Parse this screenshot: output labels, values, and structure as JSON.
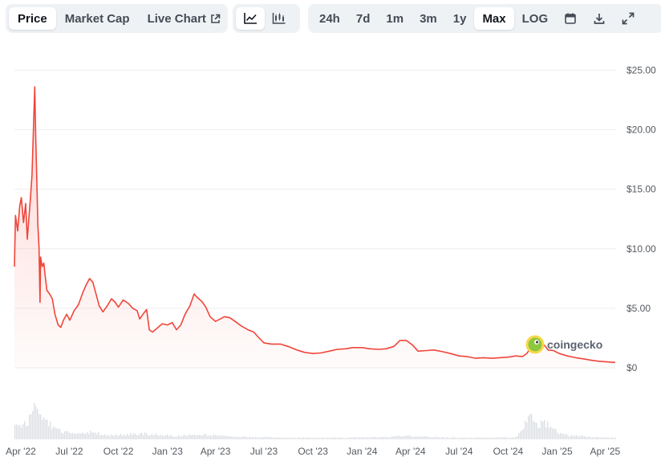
{
  "toolbar": {
    "metric_tabs": [
      {
        "label": "Price",
        "active": true
      },
      {
        "label": "Market Cap",
        "active": false
      },
      {
        "label": "Live Chart",
        "active": false
      }
    ],
    "chart_type_icons": [
      {
        "icon": "line-chart-icon",
        "active": true
      },
      {
        "icon": "candlestick-chart-icon",
        "active": false
      }
    ],
    "ranges": [
      {
        "label": "24h",
        "active": false
      },
      {
        "label": "7d",
        "active": false
      },
      {
        "label": "1m",
        "active": false
      },
      {
        "label": "3m",
        "active": false
      },
      {
        "label": "1y",
        "active": false
      },
      {
        "label": "Max",
        "active": true
      },
      {
        "label": "LOG",
        "active": false
      }
    ],
    "action_icons": [
      "calendar-icon",
      "download-icon",
      "expand-icon"
    ]
  },
  "watermark": {
    "text": "coingecko",
    "logo_icon": "coingecko-logo-icon"
  },
  "colors": {
    "line": "#f0453a",
    "fill": "#fde3e1",
    "grid": "#eeeeee",
    "volume": "#dde0e4"
  },
  "chart_data": {
    "type": "line",
    "currency": "USD",
    "y_ticks": [
      "$25.00",
      "$20.00",
      "$15.00",
      "$10.00",
      "$5.00",
      "$0"
    ],
    "y_tick_values": [
      25,
      20,
      15,
      10,
      5,
      0
    ],
    "ylim": [
      0,
      25.5
    ],
    "x_ticks": [
      "Apr '22",
      "Jul '22",
      "Oct '22",
      "Jan '23",
      "Apr '23",
      "Jul '23",
      "Oct '23",
      "Jan '24",
      "Apr '24",
      "Jul '24",
      "Oct '24",
      "Jan '25",
      "Apr '25"
    ],
    "x_tick_dates": [
      "2022-04-01",
      "2022-07-01",
      "2022-10-01",
      "2023-01-01",
      "2023-04-01",
      "2023-07-01",
      "2023-10-01",
      "2024-01-01",
      "2024-04-01",
      "2024-07-01",
      "2024-10-01",
      "2025-01-01",
      "2025-04-01"
    ],
    "xlim": [
      "2022-03-20",
      "2025-04-20"
    ],
    "grid": true,
    "series": [
      {
        "values": [
          [
            "2022-03-20",
            8.5
          ],
          [
            "2022-03-22",
            12.8
          ],
          [
            "2022-03-26",
            11.5
          ],
          [
            "2022-03-30",
            13.6
          ],
          [
            "2022-04-02",
            14.3
          ],
          [
            "2022-04-06",
            12.2
          ],
          [
            "2022-04-10",
            13.8
          ],
          [
            "2022-04-13",
            10.8
          ],
          [
            "2022-04-16",
            12.5
          ],
          [
            "2022-04-19",
            14.2
          ],
          [
            "2022-04-22",
            16.2
          ],
          [
            "2022-04-25",
            20.5
          ],
          [
            "2022-04-27",
            23.6
          ],
          [
            "2022-04-29",
            19.2
          ],
          [
            "2022-05-01",
            15.8
          ],
          [
            "2022-05-03",
            12.0
          ],
          [
            "2022-05-05",
            10.2
          ],
          [
            "2022-05-07",
            5.5
          ],
          [
            "2022-05-08",
            9.3
          ],
          [
            "2022-05-11",
            8.5
          ],
          [
            "2022-05-14",
            8.8
          ],
          [
            "2022-05-17",
            7.6
          ],
          [
            "2022-05-20",
            6.5
          ],
          [
            "2022-05-25",
            6.2
          ],
          [
            "2022-05-30",
            5.8
          ],
          [
            "2022-06-04",
            4.5
          ],
          [
            "2022-06-10",
            3.6
          ],
          [
            "2022-06-15",
            3.4
          ],
          [
            "2022-06-20",
            4.0
          ],
          [
            "2022-06-26",
            4.5
          ],
          [
            "2022-07-02",
            4.0
          ],
          [
            "2022-07-10",
            4.8
          ],
          [
            "2022-07-18",
            5.3
          ],
          [
            "2022-07-26",
            6.3
          ],
          [
            "2022-08-02",
            7.0
          ],
          [
            "2022-08-08",
            7.5
          ],
          [
            "2022-08-14",
            7.2
          ],
          [
            "2022-08-20",
            6.2
          ],
          [
            "2022-08-26",
            5.2
          ],
          [
            "2022-09-02",
            4.7
          ],
          [
            "2022-09-10",
            5.2
          ],
          [
            "2022-09-18",
            5.8
          ],
          [
            "2022-09-25",
            5.5
          ],
          [
            "2022-10-01",
            5.1
          ],
          [
            "2022-10-10",
            5.7
          ],
          [
            "2022-10-20",
            5.4
          ],
          [
            "2022-10-28",
            5.0
          ],
          [
            "2022-11-05",
            4.8
          ],
          [
            "2022-11-10",
            4.1
          ],
          [
            "2022-11-16",
            4.5
          ],
          [
            "2022-11-23",
            4.9
          ],
          [
            "2022-11-28",
            3.2
          ],
          [
            "2022-12-04",
            3.0
          ],
          [
            "2022-12-12",
            3.3
          ],
          [
            "2022-12-22",
            3.7
          ],
          [
            "2023-01-01",
            3.6
          ],
          [
            "2023-01-10",
            3.8
          ],
          [
            "2023-01-18",
            3.2
          ],
          [
            "2023-01-26",
            3.6
          ],
          [
            "2023-02-03",
            4.5
          ],
          [
            "2023-02-12",
            5.2
          ],
          [
            "2023-02-20",
            6.2
          ],
          [
            "2023-02-26",
            5.9
          ],
          [
            "2023-03-06",
            5.6
          ],
          [
            "2023-03-14",
            5.1
          ],
          [
            "2023-03-22",
            4.3
          ],
          [
            "2023-04-01",
            3.9
          ],
          [
            "2023-04-10",
            4.1
          ],
          [
            "2023-04-18",
            4.3
          ],
          [
            "2023-04-28",
            4.2
          ],
          [
            "2023-05-08",
            3.9
          ],
          [
            "2023-05-20",
            3.5
          ],
          [
            "2023-06-01",
            3.2
          ],
          [
            "2023-06-12",
            3.0
          ],
          [
            "2023-06-20",
            2.6
          ],
          [
            "2023-07-01",
            2.1
          ],
          [
            "2023-07-15",
            2.0
          ],
          [
            "2023-08-01",
            2.0
          ],
          [
            "2023-08-15",
            1.8
          ],
          [
            "2023-09-01",
            1.5
          ],
          [
            "2023-09-15",
            1.3
          ],
          [
            "2023-10-01",
            1.2
          ],
          [
            "2023-10-15",
            1.25
          ],
          [
            "2023-11-01",
            1.4
          ],
          [
            "2023-11-15",
            1.55
          ],
          [
            "2023-12-01",
            1.6
          ],
          [
            "2023-12-15",
            1.7
          ],
          [
            "2024-01-01",
            1.7
          ],
          [
            "2024-01-15",
            1.6
          ],
          [
            "2024-02-01",
            1.55
          ],
          [
            "2024-02-15",
            1.6
          ],
          [
            "2024-03-01",
            1.8
          ],
          [
            "2024-03-12",
            2.3
          ],
          [
            "2024-03-24",
            2.3
          ],
          [
            "2024-04-05",
            1.9
          ],
          [
            "2024-04-15",
            1.4
          ],
          [
            "2024-05-01",
            1.45
          ],
          [
            "2024-05-15",
            1.5
          ],
          [
            "2024-06-01",
            1.35
          ],
          [
            "2024-06-15",
            1.2
          ],
          [
            "2024-07-01",
            1.0
          ],
          [
            "2024-07-15",
            0.95
          ],
          [
            "2024-08-01",
            0.8
          ],
          [
            "2024-08-15",
            0.85
          ],
          [
            "2024-09-01",
            0.8
          ],
          [
            "2024-09-15",
            0.85
          ],
          [
            "2024-10-01",
            0.9
          ],
          [
            "2024-10-15",
            1.0
          ],
          [
            "2024-10-28",
            0.95
          ],
          [
            "2024-11-05",
            1.2
          ],
          [
            "2024-11-12",
            1.65
          ],
          [
            "2024-11-20",
            1.4
          ],
          [
            "2024-12-01",
            1.8
          ],
          [
            "2024-12-08",
            1.9
          ],
          [
            "2024-12-15",
            1.5
          ],
          [
            "2024-12-25",
            1.45
          ],
          [
            "2025-01-05",
            1.2
          ],
          [
            "2025-01-20",
            1.0
          ],
          [
            "2025-02-05",
            0.85
          ],
          [
            "2025-02-20",
            0.75
          ],
          [
            "2025-03-05",
            0.65
          ],
          [
            "2025-03-20",
            0.55
          ],
          [
            "2025-04-05",
            0.5
          ],
          [
            "2025-04-20",
            0.45
          ]
        ]
      }
    ],
    "volume_relative": [
      [
        "2022-03-20",
        0.35
      ],
      [
        "2022-04-01",
        0.3
      ],
      [
        "2022-04-15",
        0.45
      ],
      [
        "2022-04-27",
        1.0
      ],
      [
        "2022-05-05",
        0.8
      ],
      [
        "2022-05-12",
        0.55
      ],
      [
        "2022-06-01",
        0.3
      ],
      [
        "2022-06-15",
        0.2
      ],
      [
        "2022-07-15",
        0.12
      ],
      [
        "2022-08-10",
        0.18
      ],
      [
        "2022-09-15",
        0.1
      ],
      [
        "2022-11-10",
        0.15
      ],
      [
        "2023-01-15",
        0.08
      ],
      [
        "2023-03-01",
        0.12
      ],
      [
        "2023-06-01",
        0.06
      ],
      [
        "2023-10-01",
        0.04
      ],
      [
        "2024-01-15",
        0.05
      ],
      [
        "2024-03-20",
        0.08
      ],
      [
        "2024-07-01",
        0.04
      ],
      [
        "2024-10-15",
        0.05
      ],
      [
        "2024-11-12",
        0.6
      ],
      [
        "2024-11-25",
        0.35
      ],
      [
        "2024-12-08",
        0.45
      ],
      [
        "2025-01-10",
        0.12
      ],
      [
        "2025-03-01",
        0.06
      ],
      [
        "2025-04-20",
        0.04
      ]
    ]
  }
}
